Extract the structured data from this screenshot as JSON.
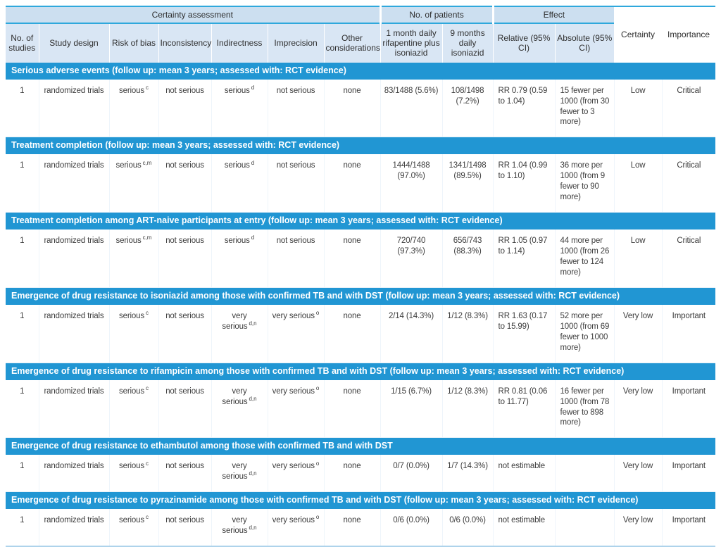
{
  "colors": {
    "section_band": "#2196d3",
    "accent_line": "#2fa8dc",
    "group_header_bg": "#ccdff0",
    "column_header_bg": "#d9e6f4"
  },
  "header": {
    "groups": [
      {
        "label": "Certainty assessment",
        "span": 7
      },
      {
        "label": "No. of patients",
        "span": 2
      },
      {
        "label": "Effect",
        "span": 2
      }
    ],
    "columns": [
      "No. of studies",
      "Study design",
      "Risk of bias",
      "Inconsistency",
      "Indirectness",
      "Imprecision",
      "Other considerations",
      "1 month daily rifapentine plus isoniazid",
      "9 months daily isoniazid",
      "Relative (95% CI)",
      "Absolute (95% CI)"
    ],
    "standalone": [
      "Certainty",
      "Importance"
    ]
  },
  "sections": [
    {
      "title": "Serious adverse events (follow up: mean 3 years; assessed with: RCT evidence)",
      "rows": [
        {
          "cells": [
            "1",
            "randomized trials",
            {
              "t": "serious",
              "s": "c"
            },
            "not serious",
            {
              "t": "serious",
              "s": "d"
            },
            "not serious",
            "none",
            "83/1488 (5.6%)",
            "108/1498 (7.2%)",
            "RR 0.79 (0.59 to 1.04)",
            "15 fewer per 1000 (from 30 fewer to 3 more)",
            "Low",
            "Critical"
          ]
        }
      ]
    },
    {
      "title": "Treatment completion (follow up: mean 3 years; assessed with: RCT evidence)",
      "rows": [
        {
          "cells": [
            "1",
            "randomized trials",
            {
              "t": "serious",
              "s": "c,m"
            },
            "not serious",
            {
              "t": "serious",
              "s": "d"
            },
            "not serious",
            "none",
            "1444/1488 (97.0%)",
            "1341/1498 (89.5%)",
            "RR 1.04 (0.99 to 1.10)",
            "36 more per 1000 (from 9 fewer to 90 more)",
            "Low",
            "Critical"
          ]
        }
      ]
    },
    {
      "title": "Treatment completion among ART-naive participants at entry (follow up: mean 3 years; assessed with: RCT evidence)",
      "rows": [
        {
          "cells": [
            "1",
            "randomized trials",
            {
              "t": "serious",
              "s": "c,m"
            },
            "not serious",
            {
              "t": "serious",
              "s": "d"
            },
            "not serious",
            "none",
            "720/740 (97.3%)",
            "656/743 (88.3%)",
            "RR 1.05 (0.97 to 1.14)",
            "44 more per 1000 (from 26 fewer to 124 more)",
            "Low",
            "Critical"
          ]
        }
      ]
    },
    {
      "title": "Emergence of drug resistance to isoniazid among those with confirmed TB and with DST (follow up: mean 3 years; assessed with: RCT evidence)",
      "rows": [
        {
          "cells": [
            "1",
            "randomized trials",
            {
              "t": "serious",
              "s": "c"
            },
            "not serious",
            {
              "t": "very serious",
              "s": "d,n"
            },
            {
              "t": "very serious",
              "s": "o"
            },
            "none",
            "2/14 (14.3%)",
            "1/12 (8.3%)",
            "RR 1.63 (0.17 to 15.99)",
            "52 more per 1000 (from 69 fewer to 1000 more)",
            "Very low",
            "Important"
          ]
        }
      ]
    },
    {
      "title": "Emergence of drug resistance to rifampicin among those with confirmed TB and with DST (follow up: mean 3 years; assessed with: RCT evidence)",
      "rows": [
        {
          "cells": [
            "1",
            "randomized trials",
            {
              "t": "serious",
              "s": "c"
            },
            "not serious",
            {
              "t": "very serious",
              "s": "d,n"
            },
            {
              "t": "very serious",
              "s": "o"
            },
            "none",
            "1/15 (6.7%)",
            "1/12 (8.3%)",
            "RR 0.81 (0.06 to 11.77)",
            "16 fewer per 1000 (from 78 fewer to 898 more)",
            "Very low",
            "Important"
          ]
        }
      ]
    },
    {
      "title": "Emergence of drug resistance to ethambutol among those with confirmed TB and with DST",
      "rows": [
        {
          "cells": [
            "1",
            "randomized trials",
            {
              "t": "serious",
              "s": "c"
            },
            "not serious",
            {
              "t": "very serious",
              "s": "d,n"
            },
            {
              "t": "very serious",
              "s": "o"
            },
            "none",
            "0/7 (0.0%)",
            "1/7 (14.3%)",
            "not estimable",
            "",
            "Very low",
            "Important"
          ]
        }
      ]
    },
    {
      "title": "Emergence of drug resistance to pyrazinamide among those with confirmed TB and with DST (follow up: mean 3 years; assessed with: RCT evidence)",
      "rows": [
        {
          "cells": [
            "1",
            "randomized trials",
            {
              "t": "serious",
              "s": "c"
            },
            "not serious",
            {
              "t": "very serious",
              "s": "d,n"
            },
            {
              "t": "very serious",
              "s": "o"
            },
            "none",
            "0/6 (0.0%)",
            "0/6 (0.0%)",
            "not estimable",
            "",
            "Very low",
            "Important"
          ]
        }
      ]
    }
  ]
}
